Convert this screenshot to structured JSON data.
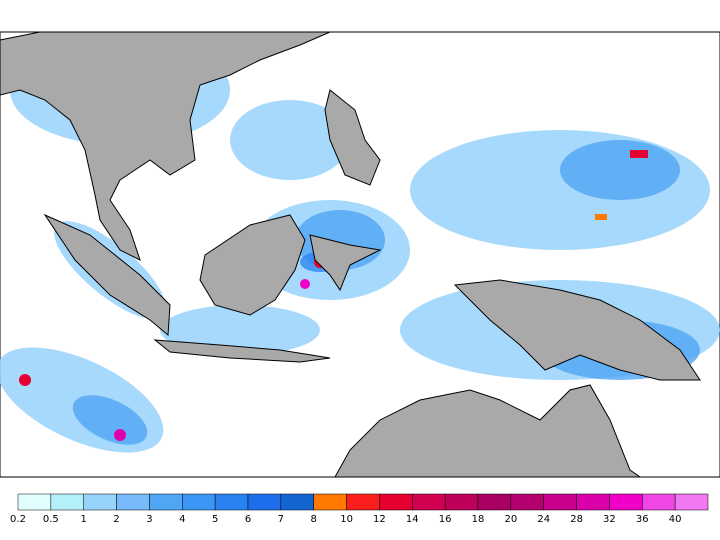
{
  "colorbar": {
    "labels": [
      0.2,
      0.5,
      1,
      2,
      3,
      4,
      5,
      6,
      7,
      8,
      10,
      12,
      14,
      16,
      18,
      20,
      24,
      28,
      32,
      36,
      40
    ],
    "colors": [
      "#e0fffe",
      "#b4f0fa",
      "#96d2fa",
      "#78b9fa",
      "#50a5f5",
      "#3c96f5",
      "#2882f0",
      "#1e6eeb",
      "#1464d2",
      "#ff7800",
      "#fa1e1e",
      "#e60032",
      "#d20050",
      "#be005a",
      "#aa0064",
      "#b4006e",
      "#c8008c",
      "#dc00aa",
      "#f000c8",
      "#f046e6",
      "#f078f0"
    ]
  }
}
